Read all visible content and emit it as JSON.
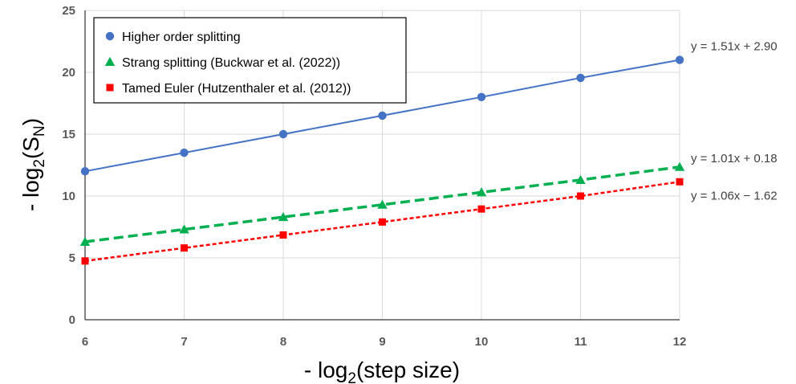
{
  "chart_data": {
    "type": "line",
    "xlabel": {
      "prefix": "- log",
      "sub": "2",
      "suffix": "(step size)"
    },
    "ylabel": {
      "prefix": "- log",
      "sub": "2",
      "mid": "(S",
      "sub2": "N",
      "suffix": ")"
    },
    "xlim": [
      6,
      12
    ],
    "ylim": [
      0,
      25
    ],
    "xticks": [
      6,
      7,
      8,
      9,
      10,
      11,
      12
    ],
    "yticks": [
      0,
      5,
      10,
      15,
      20,
      25
    ],
    "grid": true,
    "legend": "top-left",
    "x": [
      6,
      7,
      8,
      9,
      10,
      11,
      12
    ],
    "series": [
      {
        "name": "Higher order splitting",
        "values": [
          12.0,
          13.5,
          15.0,
          16.5,
          18.0,
          19.55,
          21.0
        ],
        "color": "#4472c4",
        "marker": "circle",
        "dash": "solid",
        "trendline": "y = 1.51x + 2.90"
      },
      {
        "name": "Strang splitting (Buckwar et al. (2022))",
        "values": [
          6.3,
          7.3,
          8.3,
          9.3,
          10.3,
          11.3,
          12.35
        ],
        "color": "#00b050",
        "marker": "triangle",
        "dash": "long-dash",
        "trendline": "y = 1.01x + 0.18"
      },
      {
        "name": "Tamed Euler (Hutzenthaler et al. (2012))",
        "values": [
          4.75,
          5.8,
          6.85,
          7.9,
          8.95,
          10.0,
          11.15
        ],
        "color": "#ff0000",
        "marker": "square",
        "dash": "dotted",
        "trendline": "y = 1.06x − 1.62"
      }
    ]
  }
}
